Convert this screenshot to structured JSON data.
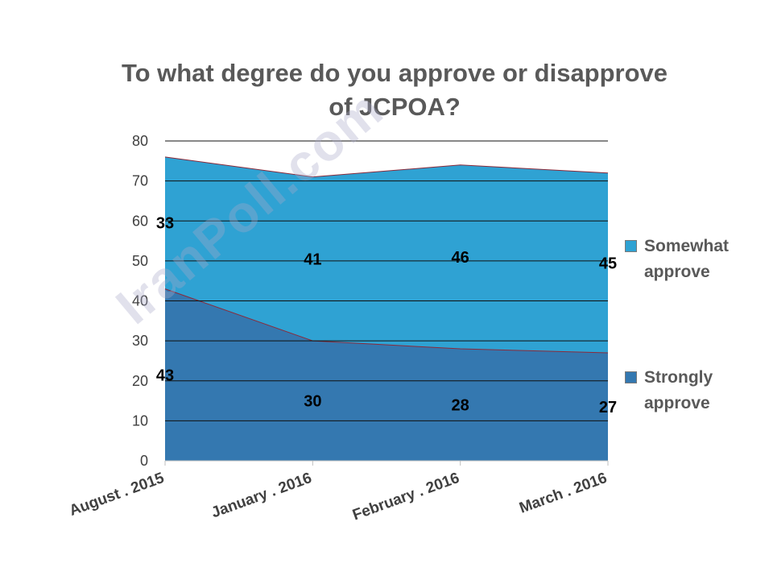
{
  "chart_data": {
    "type": "area",
    "stacked": true,
    "title": "To what degree do you approve or disapprove of JCPOA?",
    "categories": [
      "August . 2015",
      "January . 2016",
      "February . 2016",
      "March . 2016"
    ],
    "series": [
      {
        "name": "Strongly approve",
        "values": [
          43,
          30,
          28,
          27
        ],
        "color": "#3478b0"
      },
      {
        "name": "Somewhat approve",
        "values": [
          33,
          41,
          46,
          45
        ],
        "color": "#2fa2d3"
      }
    ],
    "yticks": [
      "0",
      "10",
      "20",
      "30",
      "40",
      "50",
      "60",
      "70",
      "80"
    ],
    "ylim": [
      0,
      80
    ],
    "grid": true,
    "legend_position": "right",
    "watermark": "IranPoll.com"
  }
}
